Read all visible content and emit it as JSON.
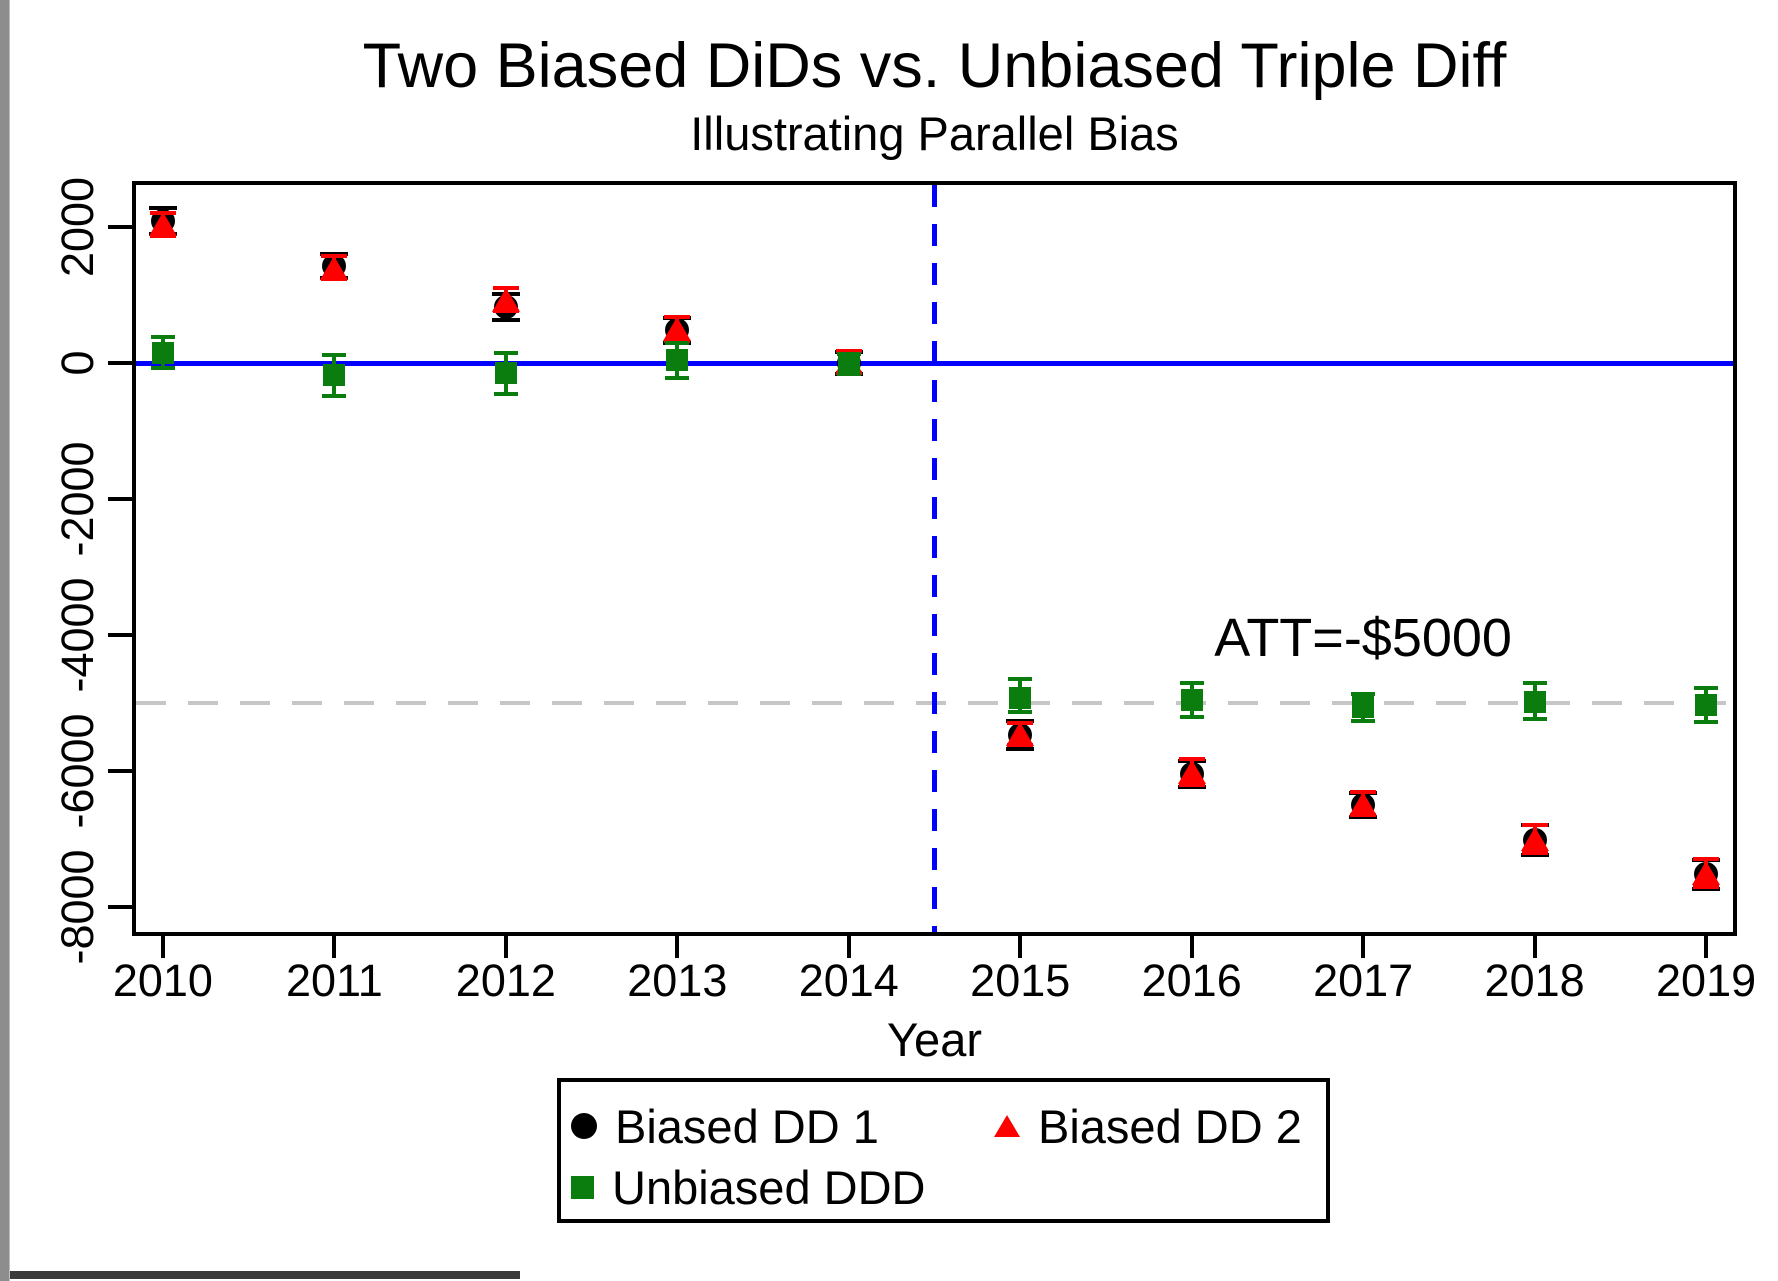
{
  "chart_data": {
    "type": "scatter",
    "title": "Two Biased DiDs vs. Unbiased Triple Diff",
    "subtitle": "Illustrating Parallel Bias",
    "xlabel": "Year",
    "x_ticks": [
      2010,
      2011,
      2012,
      2013,
      2014,
      2015,
      2016,
      2017,
      2018,
      2019
    ],
    "y_ticks": [
      2000,
      0,
      -2000,
      -4000,
      -6000,
      -8000
    ],
    "xlim": [
      2009.843,
      2019.157
    ],
    "ylim": [
      -8367,
      2618
    ],
    "grid": false,
    "legend_position": "bottom",
    "annotation": {
      "text": "ATT=-$5000",
      "x": 2017,
      "y": -4050
    },
    "reference_lines": [
      {
        "orientation": "horizontal",
        "value": -5000,
        "style": "dashed",
        "color": "#c6c6c6",
        "thickness": 4
      },
      {
        "orientation": "horizontal",
        "value": 0,
        "style": "solid",
        "color": "#0000ff",
        "thickness": 5
      },
      {
        "orientation": "vertical",
        "value": 2014.5,
        "style": "dashed",
        "color": "#0000ff",
        "thickness": 5
      }
    ],
    "x": [
      2010,
      2011,
      2012,
      2013,
      2014,
      2015,
      2016,
      2017,
      2018,
      2019
    ],
    "series": [
      {
        "name": "Biased DD 1",
        "marker": "circle",
        "color": "#000000",
        "values": [
          2090,
          1430,
          830,
          480,
          0,
          -5470,
          -6040,
          -6500,
          -7020,
          -7520
        ],
        "ci_low": [
          1900,
          1250,
          640,
          300,
          -160,
          -5670,
          -6230,
          -6680,
          -7240,
          -7730
        ],
        "ci_high": [
          2280,
          1610,
          1020,
          660,
          160,
          -5270,
          -5850,
          -6320,
          -6800,
          -7310
        ]
      },
      {
        "name": "Biased DD 2",
        "marker": "triangle",
        "color": "#ff0000",
        "values": [
          2040,
          1400,
          930,
          500,
          20,
          -5450,
          -6010,
          -6480,
          -7000,
          -7500
        ],
        "ci_low": [
          1870,
          1230,
          760,
          330,
          -140,
          -5610,
          -6200,
          -6650,
          -7200,
          -7700
        ],
        "ci_high": [
          2210,
          1570,
          1100,
          670,
          180,
          -5290,
          -5820,
          -6310,
          -6800,
          -7300
        ]
      },
      {
        "name": "Unbiased DDD",
        "marker": "square",
        "color": "#0b7c0e",
        "values": [
          150,
          -180,
          -150,
          50,
          -10,
          -4920,
          -4950,
          -5060,
          -4980,
          -5030
        ],
        "ci_low": [
          -80,
          -480,
          -450,
          -220,
          -160,
          -5130,
          -5200,
          -5270,
          -5230,
          -5280
        ],
        "ci_high": [
          390,
          120,
          150,
          290,
          140,
          -4650,
          -4710,
          -4860,
          -4700,
          -4780
        ]
      }
    ]
  }
}
